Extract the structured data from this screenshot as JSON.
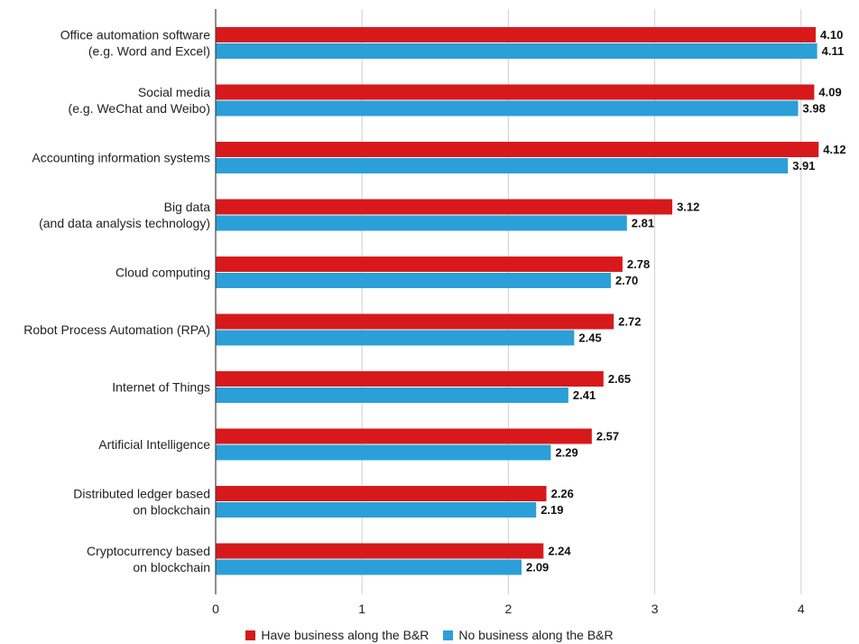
{
  "chart_data": {
    "type": "bar",
    "orientation": "horizontal",
    "categories": [
      [
        "Office automation software",
        "(e.g. Word and Excel)"
      ],
      [
        "Social media",
        "(e.g. WeChat and Weibo)"
      ],
      [
        "Accounting information systems"
      ],
      [
        "Big data",
        "(and data analysis technology)"
      ],
      [
        "Cloud computing"
      ],
      [
        "Robot Process Automation (RPA)"
      ],
      [
        "Internet of Things"
      ],
      [
        "Artificial Intelligence"
      ],
      [
        "Distributed ledger based",
        "on blockchain"
      ],
      [
        "Cryptocurrency based",
        "on blockchain"
      ]
    ],
    "series": [
      {
        "name": "Have business along the B&R",
        "color": "#d7191c",
        "values": [
          4.1,
          4.09,
          4.12,
          3.12,
          2.78,
          2.72,
          2.65,
          2.57,
          2.26,
          2.24
        ],
        "labels": [
          "4.10",
          "4.09",
          "4.12",
          "3.12",
          "2.78",
          "2.72",
          "2.65",
          "2.57",
          "2.26",
          "2.24"
        ]
      },
      {
        "name": "No business along the B&R",
        "color": "#2a9fd8",
        "values": [
          4.11,
          3.98,
          3.91,
          2.81,
          2.7,
          2.45,
          2.41,
          2.29,
          2.19,
          2.09
        ],
        "labels": [
          "4.11",
          "3.98",
          "3.91",
          "2.81",
          "2.70",
          "2.45",
          "2.41",
          "2.29",
          "2.19",
          "2.09"
        ]
      }
    ],
    "xlim": [
      0,
      4.35
    ],
    "xticks": [
      "0",
      "1",
      "2",
      "3",
      "4"
    ],
    "grid": true,
    "legend_position": "bottom"
  }
}
